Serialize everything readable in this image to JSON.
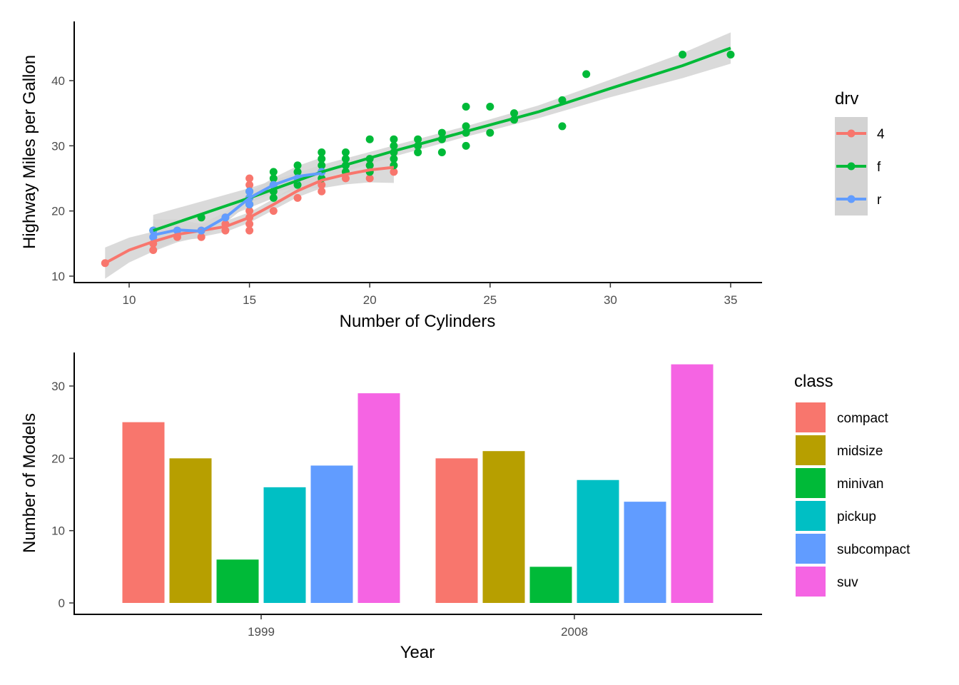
{
  "chart_data": [
    {
      "type": "scatter",
      "xlabel": "Number of Cylinders",
      "ylabel": "Highway Miles per Gallon",
      "xlim": [
        8.7,
        35.3
      ],
      "ylim": [
        9.0,
        46.5
      ],
      "xticks": [
        10,
        15,
        20,
        25,
        30,
        35
      ],
      "yticks": [
        10,
        20,
        30,
        40
      ],
      "smooth": "loess with confidence band",
      "legend": {
        "title": "drv",
        "position": "right",
        "entries": [
          "4",
          "f",
          "r"
        ]
      },
      "colors": {
        "4": "#F8766D",
        "f": "#00BA38",
        "r": "#619CFF",
        "band": "#d3d3d3"
      },
      "series": [
        {
          "name": "4",
          "points": [
            [
              9,
              12
            ],
            [
              11,
              14
            ],
            [
              11,
              15
            ],
            [
              12,
              16
            ],
            [
              12,
              17
            ],
            [
              13,
              16
            ],
            [
              13,
              17
            ],
            [
              13,
              19
            ],
            [
              14,
              17
            ],
            [
              14,
              18
            ],
            [
              14,
              19
            ],
            [
              15,
              17
            ],
            [
              15,
              18
            ],
            [
              15,
              19
            ],
            [
              15,
              20
            ],
            [
              15,
              21
            ],
            [
              15,
              22
            ],
            [
              15,
              24
            ],
            [
              15,
              25
            ],
            [
              16,
              20
            ],
            [
              17,
              22
            ],
            [
              18,
              23
            ],
            [
              18,
              24
            ],
            [
              19,
              25
            ],
            [
              19,
              26
            ],
            [
              20,
              25
            ],
            [
              20,
              26
            ],
            [
              20,
              27
            ],
            [
              21,
              26
            ],
            [
              21,
              27
            ]
          ],
          "smooth": [
            [
              9,
              12.0
            ],
            [
              10,
              14.0
            ],
            [
              11,
              15.3
            ],
            [
              12,
              16.4
            ],
            [
              13,
              17.0
            ],
            [
              14,
              17.6
            ],
            [
              15,
              19.0
            ],
            [
              16,
              21.0
            ],
            [
              17,
              23.1
            ],
            [
              18,
              24.7
            ],
            [
              19,
              25.6
            ],
            [
              20,
              26.3
            ],
            [
              21,
              26.7
            ]
          ]
        },
        {
          "name": "f",
          "points": [
            [
              11,
              17
            ],
            [
              13,
              19
            ],
            [
              15,
              21
            ],
            [
              15,
              22
            ],
            [
              15,
              23
            ],
            [
              16,
              22
            ],
            [
              16,
              23
            ],
            [
              16,
              24
            ],
            [
              16,
              25
            ],
            [
              16,
              26
            ],
            [
              17,
              24
            ],
            [
              17,
              25
            ],
            [
              17,
              26
            ],
            [
              17,
              27
            ],
            [
              18,
              25
            ],
            [
              18,
              26
            ],
            [
              18,
              27
            ],
            [
              18,
              28
            ],
            [
              18,
              29
            ],
            [
              19,
              26
            ],
            [
              19,
              27
            ],
            [
              19,
              28
            ],
            [
              19,
              29
            ],
            [
              20,
              26
            ],
            [
              20,
              27
            ],
            [
              20,
              28
            ],
            [
              20,
              31
            ],
            [
              21,
              27
            ],
            [
              21,
              28
            ],
            [
              21,
              29
            ],
            [
              21,
              30
            ],
            [
              21,
              31
            ],
            [
              22,
              29
            ],
            [
              22,
              30
            ],
            [
              22,
              31
            ],
            [
              23,
              29
            ],
            [
              23,
              31
            ],
            [
              23,
              32
            ],
            [
              24,
              30
            ],
            [
              24,
              32
            ],
            [
              24,
              33
            ],
            [
              24,
              36
            ],
            [
              25,
              32
            ],
            [
              25,
              36
            ],
            [
              26,
              34
            ],
            [
              26,
              35
            ],
            [
              28,
              33
            ],
            [
              28,
              37
            ],
            [
              29,
              41
            ],
            [
              33,
              44
            ],
            [
              35,
              44
            ]
          ],
          "smooth": [
            [
              11,
              17.0
            ],
            [
              15,
              22.0
            ],
            [
              18,
              26.0
            ],
            [
              21,
              29.2
            ],
            [
              24,
              32.2
            ],
            [
              27,
              35.2
            ],
            [
              30,
              38.8
            ],
            [
              33,
              42.3
            ],
            [
              35,
              45.0
            ]
          ]
        },
        {
          "name": "r",
          "points": [
            [
              11,
              16
            ],
            [
              11,
              17
            ],
            [
              12,
              17
            ],
            [
              13,
              17
            ],
            [
              14,
              19
            ],
            [
              15,
              21
            ],
            [
              15,
              22
            ],
            [
              15,
              23
            ],
            [
              16,
              24
            ],
            [
              17,
              25
            ],
            [
              18,
              26
            ]
          ],
          "smooth": [
            [
              11,
              16.3
            ],
            [
              12,
              17.1
            ],
            [
              13,
              16.9
            ],
            [
              14,
              19.0
            ],
            [
              15,
              22.0
            ],
            [
              16,
              24.0
            ],
            [
              17,
              25.3
            ],
            [
              18,
              25.8
            ]
          ]
        }
      ]
    },
    {
      "type": "bar",
      "xlabel": "Year",
      "ylabel": "Number of Models",
      "ylim": [
        0,
        34.6
      ],
      "yticks": [
        0,
        10,
        20,
        30
      ],
      "categories": [
        "1999",
        "2008"
      ],
      "legend": {
        "title": "class",
        "position": "right"
      },
      "series": [
        {
          "name": "compact",
          "color": "#F8766D",
          "values": [
            25,
            20
          ]
        },
        {
          "name": "midsize",
          "color": "#B79F00",
          "values": [
            20,
            21
          ]
        },
        {
          "name": "minivan",
          "color": "#00BA38",
          "values": [
            6,
            5
          ]
        },
        {
          "name": "pickup",
          "color": "#00BFC4",
          "values": [
            16,
            17
          ]
        },
        {
          "name": "subcompact",
          "color": "#619CFF",
          "values": [
            19,
            14
          ]
        },
        {
          "name": "suv",
          "color": "#F564E3",
          "values": [
            29,
            33
          ]
        }
      ]
    }
  ]
}
